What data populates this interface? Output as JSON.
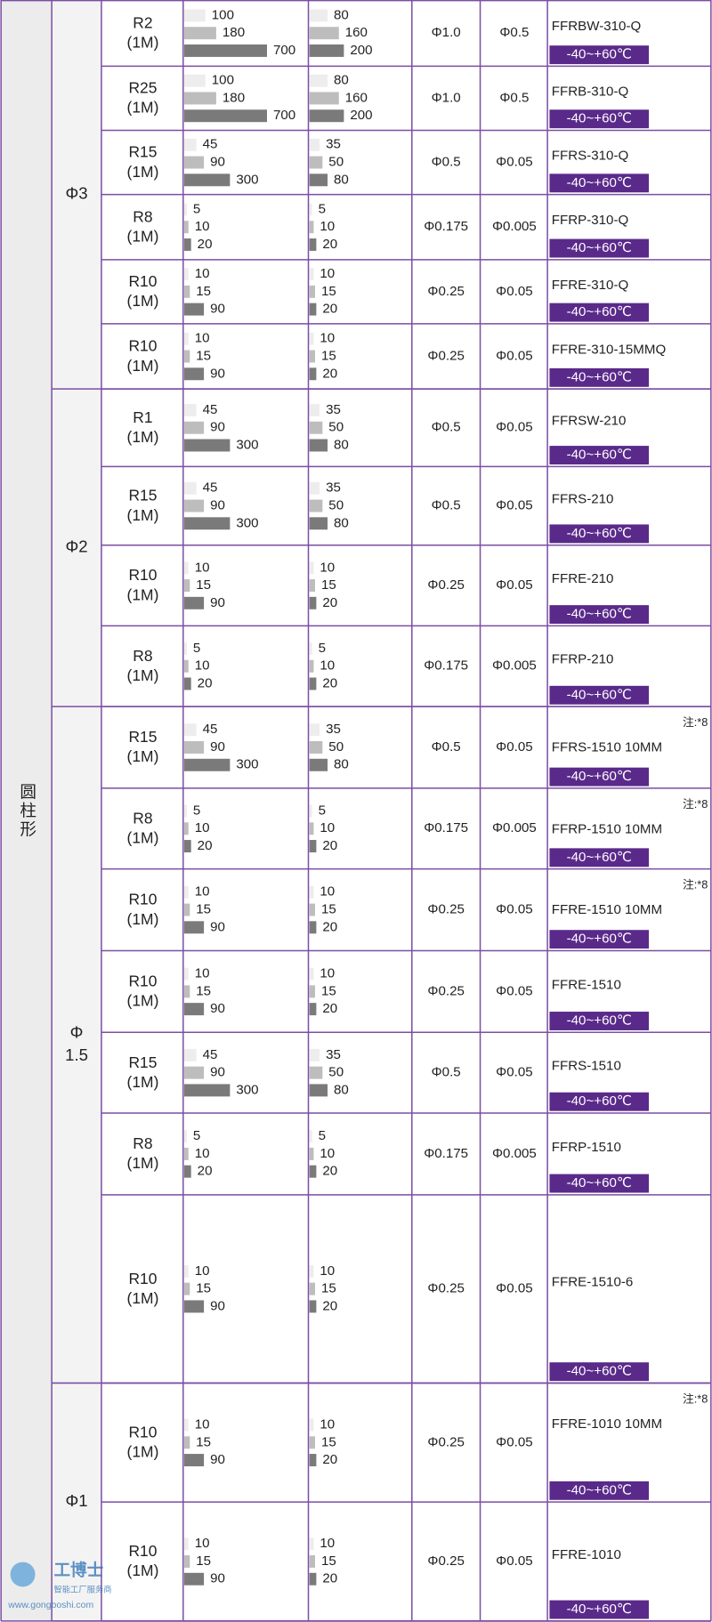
{
  "section_label": "圆柱形",
  "temp_label": "-40~+60℃",
  "note_label": "注:*8",
  "watermark": {
    "brand": "工博士",
    "tagline": "智能工厂服务商",
    "url": "www.gongboshi.com"
  },
  "groups": [
    {
      "label_lines": [
        "Φ3"
      ],
      "rows": [
        {
          "radius": "R2",
          "length": "(1M)",
          "bars_a": [
            100,
            180,
            700
          ],
          "bars_b": [
            80,
            160,
            200
          ],
          "diameter_a": "Φ1.0",
          "diameter_b": "Φ0.5",
          "model": "FFRBW-310-Q"
        },
        {
          "radius": "R25",
          "length": "(1M)",
          "bars_a": [
            100,
            180,
            700
          ],
          "bars_b": [
            80,
            160,
            200
          ],
          "diameter_a": "Φ1.0",
          "diameter_b": "Φ0.5",
          "model": "FFRB-310-Q"
        },
        {
          "radius": "R15",
          "length": "(1M)",
          "bars_a": [
            45,
            90,
            300
          ],
          "bars_b": [
            35,
            50,
            80
          ],
          "diameter_a": "Φ0.5",
          "diameter_b": "Φ0.05",
          "model": "FFRS-310-Q"
        },
        {
          "radius": "R8",
          "length": "(1M)",
          "bars_a": [
            5,
            10,
            20
          ],
          "bars_b": [
            5,
            10,
            20
          ],
          "diameter_a": "Φ0.175",
          "diameter_b": "Φ0.005",
          "model": "FFRP-310-Q"
        },
        {
          "radius": "R10",
          "length": "(1M)",
          "bars_a": [
            10,
            15,
            90
          ],
          "bars_b": [
            10,
            15,
            20
          ],
          "diameter_a": "Φ0.25",
          "diameter_b": "Φ0.05",
          "model": "FFRE-310-Q"
        },
        {
          "radius": "R10",
          "length": "(1M)",
          "bars_a": [
            10,
            15,
            90
          ],
          "bars_b": [
            10,
            15,
            20
          ],
          "diameter_a": "Φ0.25",
          "diameter_b": "Φ0.05",
          "model": "FFRE-310-15MMQ"
        }
      ]
    },
    {
      "label_lines": [
        "Φ2"
      ],
      "rows": [
        {
          "radius": "R1",
          "length": "(1M)",
          "bars_a": [
            45,
            90,
            300
          ],
          "bars_b": [
            35,
            50,
            80
          ],
          "diameter_a": "Φ0.5",
          "diameter_b": "Φ0.05",
          "model": "FFRSW-210"
        },
        {
          "radius": "R15",
          "length": "(1M)",
          "bars_a": [
            45,
            90,
            300
          ],
          "bars_b": [
            35,
            50,
            80
          ],
          "diameter_a": "Φ0.5",
          "diameter_b": "Φ0.05",
          "model": "FFRS-210"
        },
        {
          "radius": "R10",
          "length": "(1M)",
          "bars_a": [
            10,
            15,
            90
          ],
          "bars_b": [
            10,
            15,
            20
          ],
          "diameter_a": "Φ0.25",
          "diameter_b": "Φ0.05",
          "model": "FFRE-210"
        },
        {
          "radius": "R8",
          "length": "(1M)",
          "bars_a": [
            5,
            10,
            20
          ],
          "bars_b": [
            5,
            10,
            20
          ],
          "diameter_a": "Φ0.175",
          "diameter_b": "Φ0.005",
          "model": "FFRP-210"
        }
      ]
    },
    {
      "label_lines": [
        "Φ",
        "1.5"
      ],
      "rows": [
        {
          "radius": "R15",
          "length": "(1M)",
          "bars_a": [
            45,
            90,
            300
          ],
          "bars_b": [
            35,
            50,
            80
          ],
          "diameter_a": "Φ0.5",
          "diameter_b": "Φ0.05",
          "model": "FFRS-1510 10MM",
          "note": true
        },
        {
          "radius": "R8",
          "length": "(1M)",
          "bars_a": [
            5,
            10,
            20
          ],
          "bars_b": [
            5,
            10,
            20
          ],
          "diameter_a": "Φ0.175",
          "diameter_b": "Φ0.005",
          "model": "FFRP-1510 10MM",
          "note": true
        },
        {
          "radius": "R10",
          "length": "(1M)",
          "bars_a": [
            10,
            15,
            90
          ],
          "bars_b": [
            10,
            15,
            20
          ],
          "diameter_a": "Φ0.25",
          "diameter_b": "Φ0.05",
          "model": "FFRE-1510 10MM",
          "note": true
        },
        {
          "radius": "R10",
          "length": "(1M)",
          "bars_a": [
            10,
            15,
            90
          ],
          "bars_b": [
            10,
            15,
            20
          ],
          "diameter_a": "Φ0.25",
          "diameter_b": "Φ0.05",
          "model": "FFRE-1510"
        },
        {
          "radius": "R15",
          "length": "(1M)",
          "bars_a": [
            45,
            90,
            300
          ],
          "bars_b": [
            35,
            50,
            80
          ],
          "diameter_a": "Φ0.5",
          "diameter_b": "Φ0.05",
          "model": "FFRS-1510"
        },
        {
          "radius": "R8",
          "length": "(1M)",
          "bars_a": [
            5,
            10,
            20
          ],
          "bars_b": [
            5,
            10,
            20
          ],
          "diameter_a": "Φ0.175",
          "diameter_b": "Φ0.005",
          "model": "FFRP-1510"
        },
        {
          "radius": "R10",
          "length": "(1M)",
          "bars_a": [
            10,
            15,
            90
          ],
          "bars_b": [
            10,
            15,
            20
          ],
          "diameter_a": "Φ0.25",
          "diameter_b": "Φ0.05",
          "model": "FFRE-1510-6"
        }
      ]
    },
    {
      "label_lines": [
        "Φ1"
      ],
      "rows": [
        {
          "radius": "R10",
          "length": "(1M)",
          "bars_a": [
            10,
            15,
            90
          ],
          "bars_b": [
            10,
            15,
            20
          ],
          "diameter_a": "Φ0.25",
          "diameter_b": "Φ0.05",
          "model": "FFRE-1010 10MM",
          "note": true
        },
        {
          "radius": "R10",
          "length": "(1M)",
          "bars_a": [
            10,
            15,
            90
          ],
          "bars_b": [
            10,
            15,
            20
          ],
          "diameter_a": "Φ0.25",
          "diameter_b": "Φ0.05",
          "model": "FFRE-1010"
        }
      ]
    }
  ]
}
